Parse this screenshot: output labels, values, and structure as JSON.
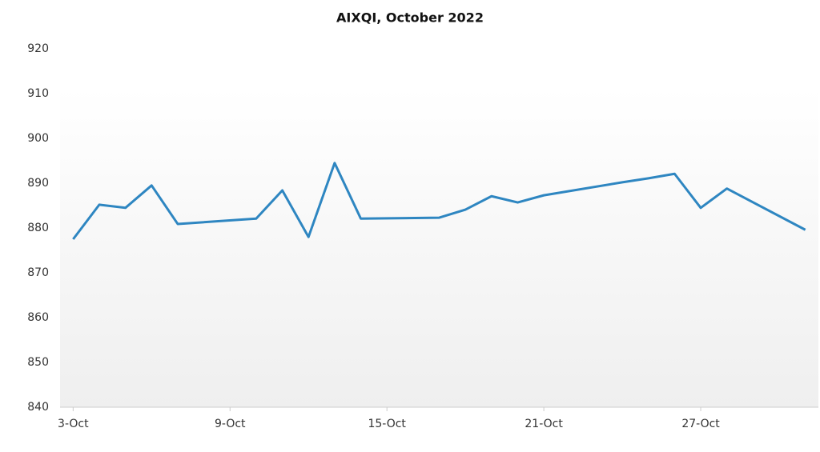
{
  "chart_data": {
    "type": "line",
    "title": "AIXQI, October 2022",
    "x": [
      3,
      4,
      5,
      6,
      7,
      10,
      11,
      12,
      13,
      14,
      17,
      18,
      19,
      20,
      21,
      24,
      25,
      26,
      27,
      28,
      31
    ],
    "series": [
      {
        "name": "AIXQI",
        "color": "#2e86c1",
        "values": [
          877.5,
          885.2,
          884.5,
          889.5,
          880.9,
          882.1,
          888.4,
          878.0,
          894.5,
          882.1,
          882.3,
          884.1,
          887.1,
          885.7,
          887.3,
          890.2,
          891.1,
          892.1,
          884.5,
          888.8,
          879.6
        ]
      }
    ],
    "xlim": [
      2.5,
      31.5
    ],
    "xticks": [
      {
        "value": 3,
        "label": "3-Oct"
      },
      {
        "value": 9,
        "label": "9-Oct"
      },
      {
        "value": 15,
        "label": "15-Oct"
      },
      {
        "value": 21,
        "label": "21-Oct"
      },
      {
        "value": 27,
        "label": "27-Oct"
      }
    ],
    "ylim": [
      840,
      920
    ],
    "yticks": [
      840,
      850,
      860,
      870,
      880,
      890,
      900,
      910,
      920
    ]
  }
}
